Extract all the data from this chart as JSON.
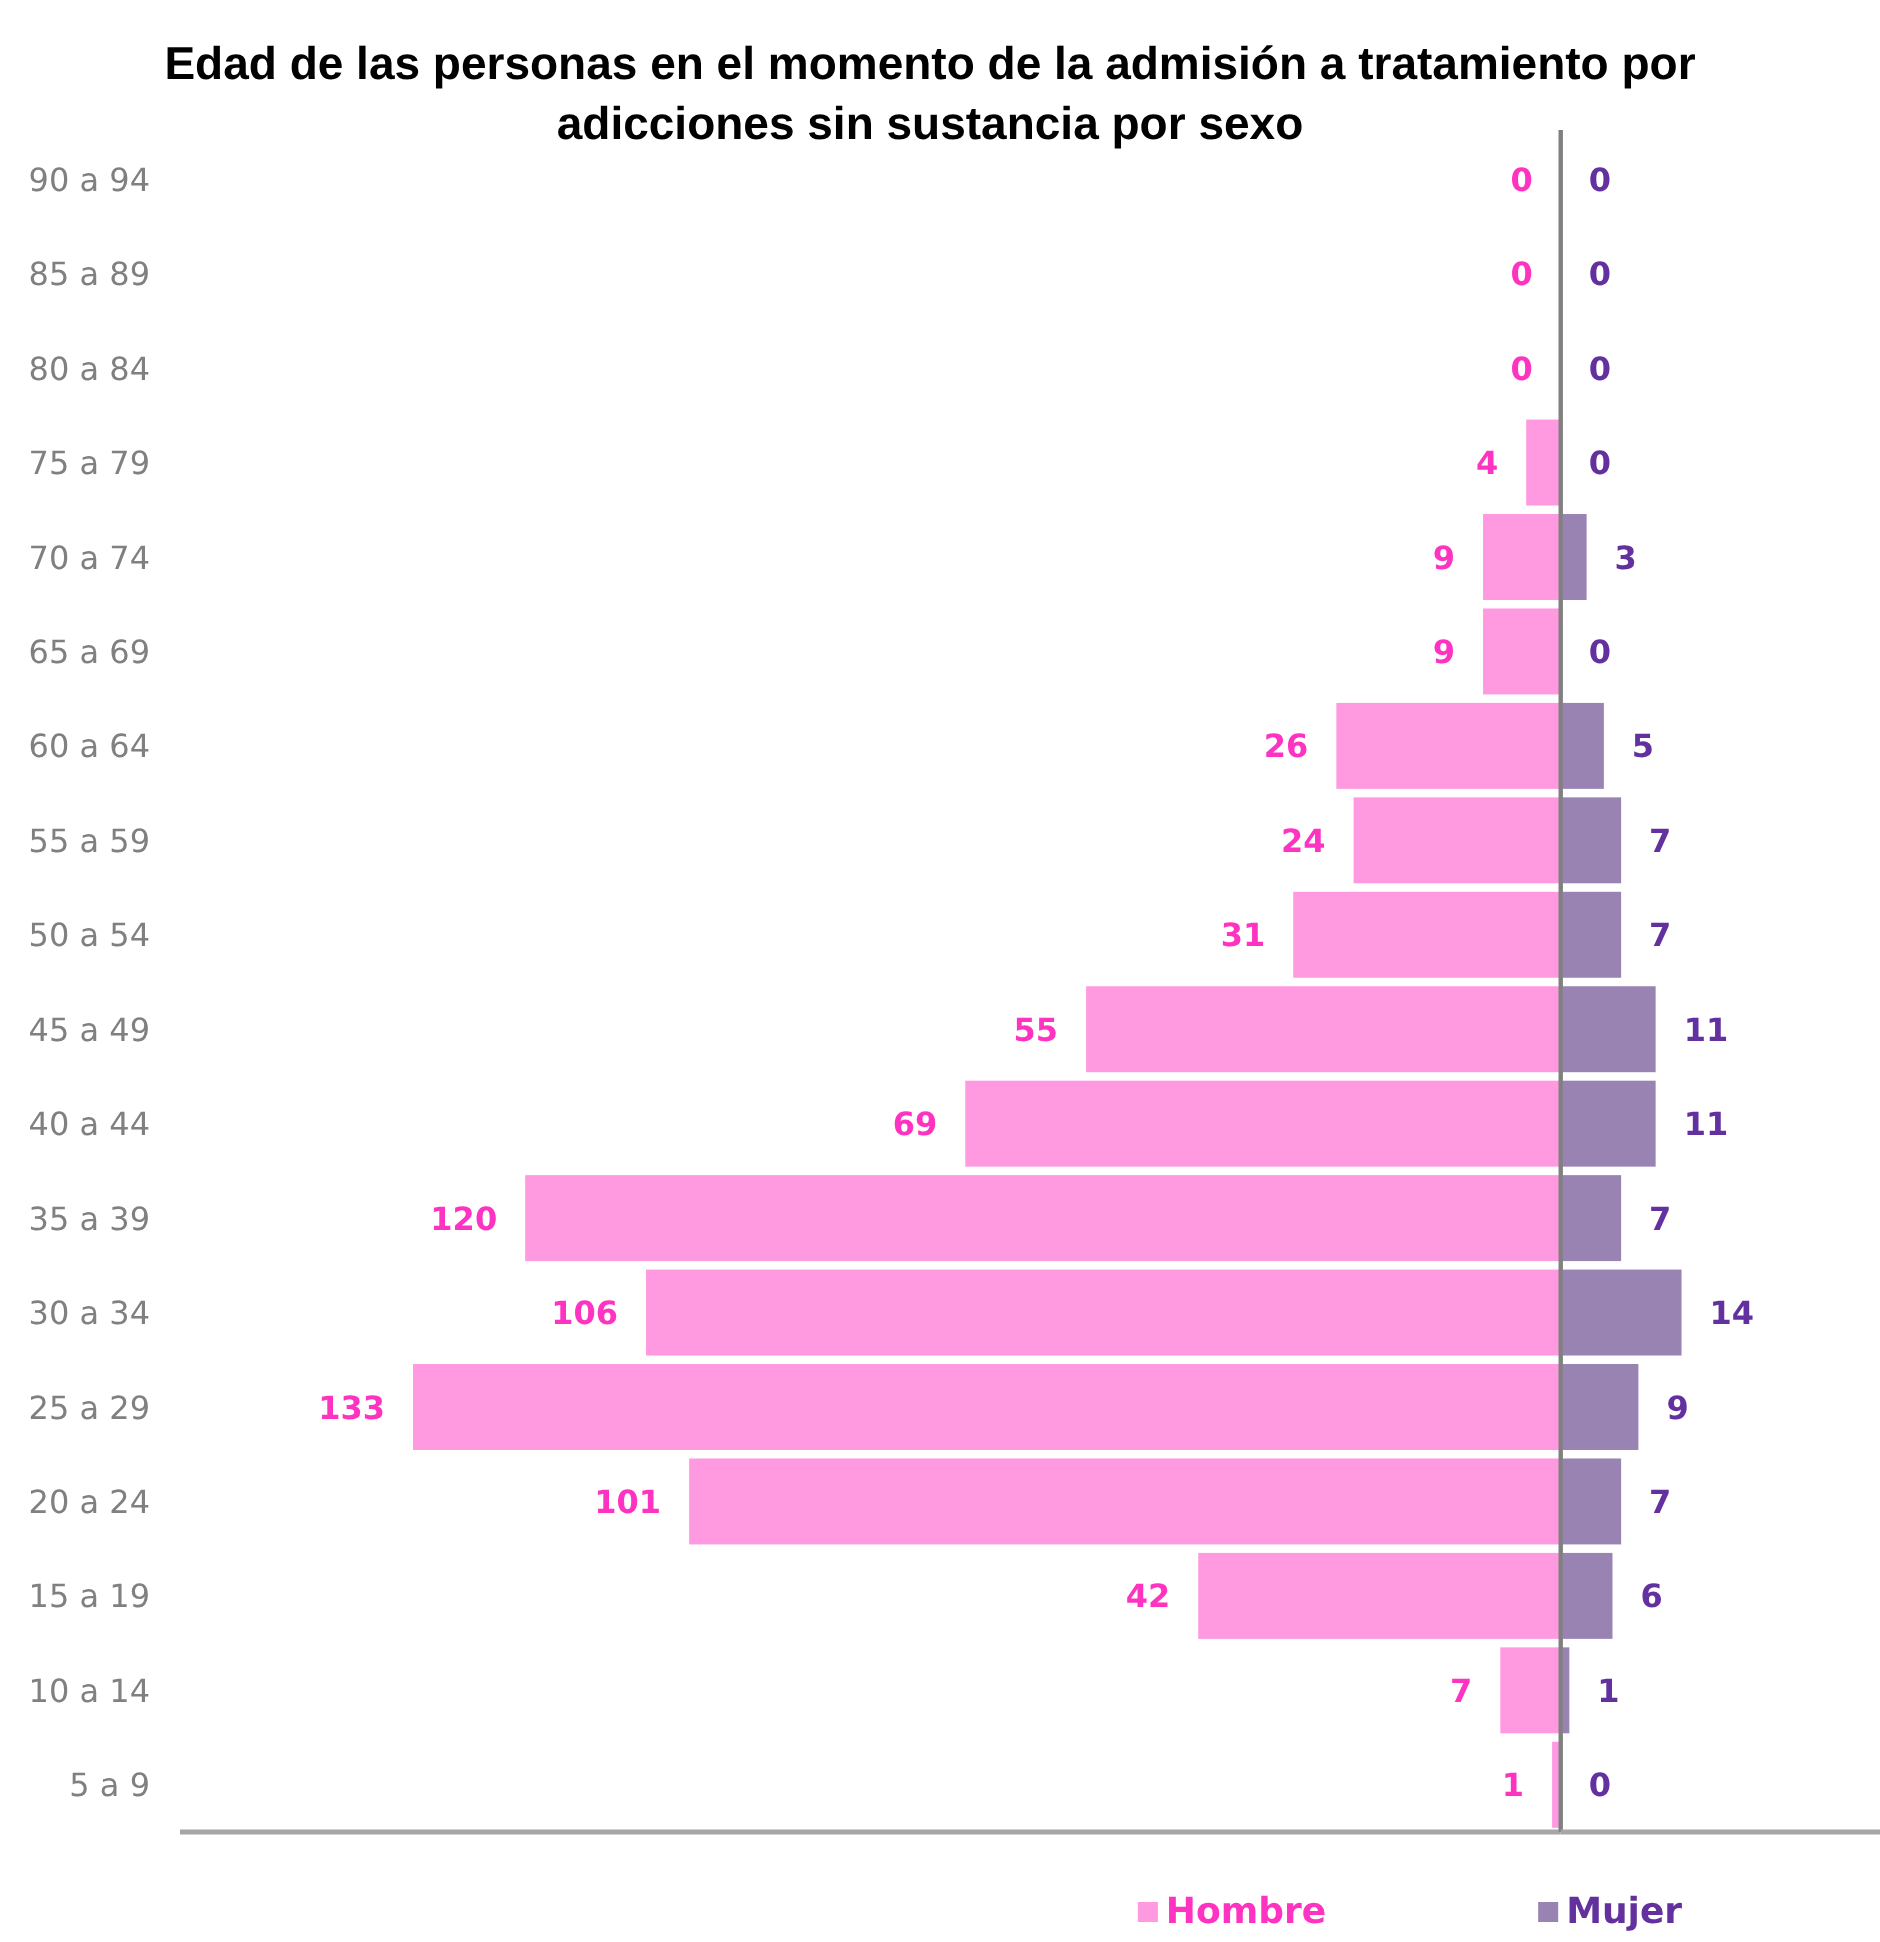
{
  "chart_data": [
    {
      "type": "bar",
      "orientation": "horizontal",
      "title": "Edad de las personas en el momento de la admisión a tratamiento por adicciones sin sustancia por sexo",
      "categories": [
        "90 a 94",
        "85 a 89",
        "80 a 84",
        "75 a 79",
        "70 a 74",
        "65 a 69",
        "60 a 64",
        "55 a 59",
        "50 a 54",
        "45 a 49",
        "40 a 44",
        "35 a 39",
        "30 a 34",
        "25 a 29",
        "20 a 24",
        "15 a 19",
        "10 a 14",
        "5 a 9"
      ],
      "series": [
        {
          "name": "Hombre",
          "color": "#ff99e0",
          "values": [
            0,
            0,
            0,
            4,
            9,
            9,
            26,
            24,
            31,
            55,
            69,
            120,
            106,
            133,
            101,
            42,
            7,
            1
          ]
        }
      ],
      "xlim": [
        160,
        0
      ],
      "tick_labels": "y",
      "legend": "bottom",
      "data_labels": true
    },
    {
      "type": "bar",
      "orientation": "horizontal",
      "categories": [
        null,
        null,
        null,
        null,
        null,
        null,
        null,
        null,
        null,
        null,
        null,
        null,
        null,
        null,
        null,
        null,
        null,
        null
      ],
      "series": [
        {
          "name": "Mujer",
          "color": "#9983b3",
          "values": [
            0,
            0,
            0,
            0,
            3,
            0,
            5,
            7,
            7,
            11,
            11,
            7,
            14,
            9,
            7,
            6,
            1,
            0
          ]
        }
      ],
      "xlim": [
        0,
        37
      ],
      "legend": "bottom",
      "data_labels": true
    }
  ]
}
